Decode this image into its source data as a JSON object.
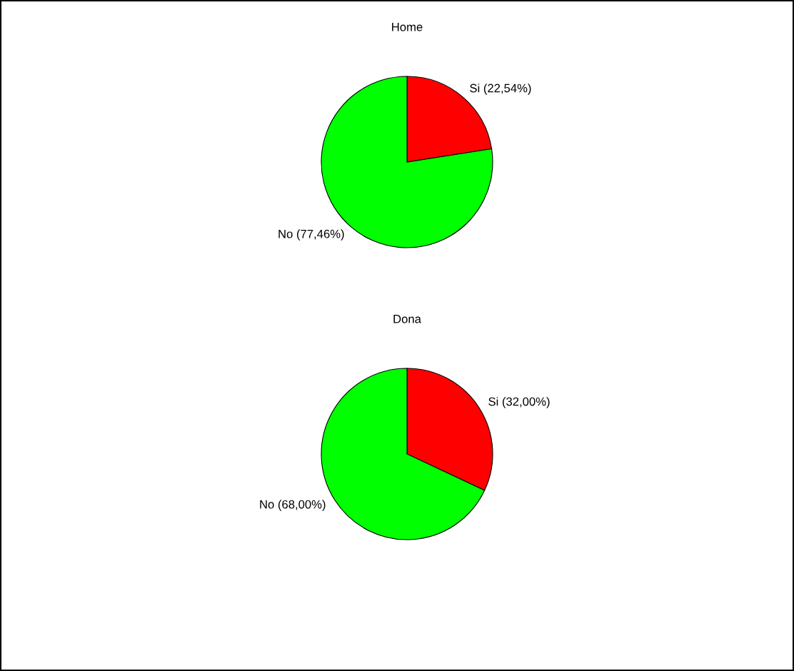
{
  "chart_data": [
    {
      "type": "pie",
      "title": "Home",
      "categories": [
        "Si (22,54%)",
        "No (77,46%)"
      ],
      "values": [
        22.54,
        77.46
      ],
      "colors": [
        "#ff0000",
        "#00ff00"
      ]
    },
    {
      "type": "pie",
      "title": "Dona",
      "categories": [
        "Si (32,00%)",
        "No (68,00%)"
      ],
      "values": [
        32.0,
        68.0
      ],
      "colors": [
        "#ff0000",
        "#00ff00"
      ]
    }
  ]
}
